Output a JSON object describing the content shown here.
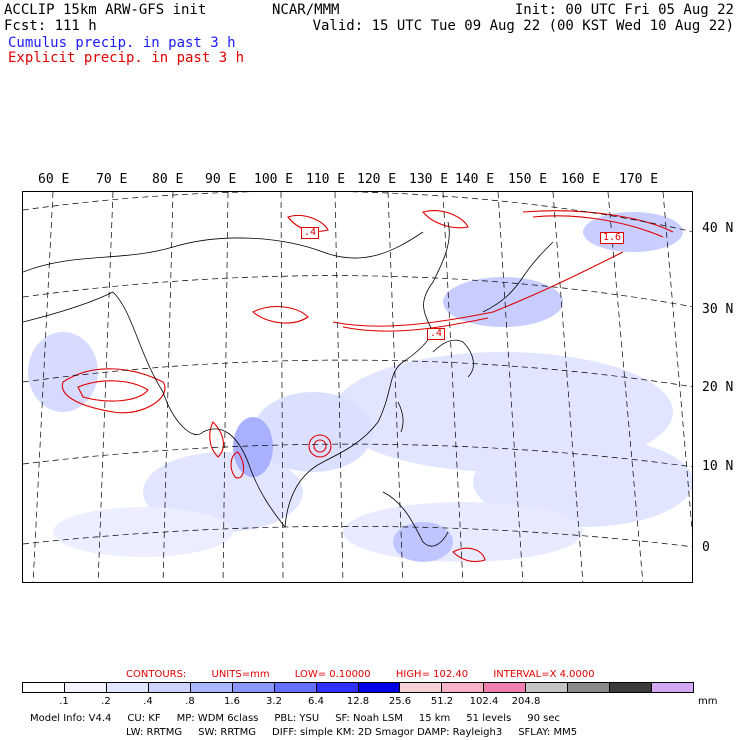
{
  "header": {
    "title_left": "ACCLIP 15km ARW-GFS init",
    "forecast": "Fcst:  111 h",
    "center": "NCAR/MMM",
    "init": "Init: 00 UTC Fri 05 Aug 22",
    "valid": "Valid: 15 UTC Tue 09 Aug 22 (00 KST Wed 10 Aug 22)",
    "legend_cumulus": "Cumulus precip. in past 3 h",
    "legend_explicit": "Explicit precip. in past 3 h"
  },
  "colors": {
    "cumulus": "#1a1aff",
    "explicit": "#e00000"
  },
  "map": {
    "lon_labels": [
      "60 E",
      "70 E",
      "80 E",
      "90 E",
      "100 E",
      "110 E",
      "120 E",
      "130 E",
      "140 E",
      "150 E",
      "160 E",
      "170 E"
    ],
    "lat_labels": [
      "40 N",
      "30 N",
      "20 N",
      "10 N",
      "0"
    ],
    "maxima_labels": [
      ".4",
      "1.6",
      ".4"
    ]
  },
  "contours": {
    "label": "CONTOURS:",
    "units": "UNITS=mm",
    "low": "LOW=  0.10000",
    "high": "HIGH=  102.40",
    "interval": "INTERVAL=X  4.0000"
  },
  "colorbar": {
    "colors": [
      "#ffffff",
      "#f2f4ff",
      "#e2e7ff",
      "#ccd4ff",
      "#aab6ff",
      "#8a97ff",
      "#6470ff",
      "#2f2fff",
      "#0000e6",
      "#f6d2d8",
      "#f7b2c6",
      "#f07fb0",
      "#c4c4c4",
      "#8a8a8a",
      "#3c3c3c",
      "#d2a8f5"
    ],
    "labels": [
      ".1",
      ".2",
      ".4",
      ".8",
      "1.6",
      "3.2",
      "6.4",
      "12.8",
      "25.6",
      "51.2",
      "102.4",
      "204.8"
    ],
    "units": "mm"
  },
  "model_info": {
    "line1": [
      "Model Info: V4.4",
      "CU: KF",
      "MP: WDM 6class",
      "PBL: YSU",
      "SF: Noah LSM",
      "15 km",
      "51 levels",
      "90 sec"
    ],
    "line2": [
      "LW: RRTMG",
      "SW: RRTMG",
      "DIFF: simple KM: 2D Smagor DAMP: Rayleigh3",
      "SFLAY: MM5"
    ]
  }
}
